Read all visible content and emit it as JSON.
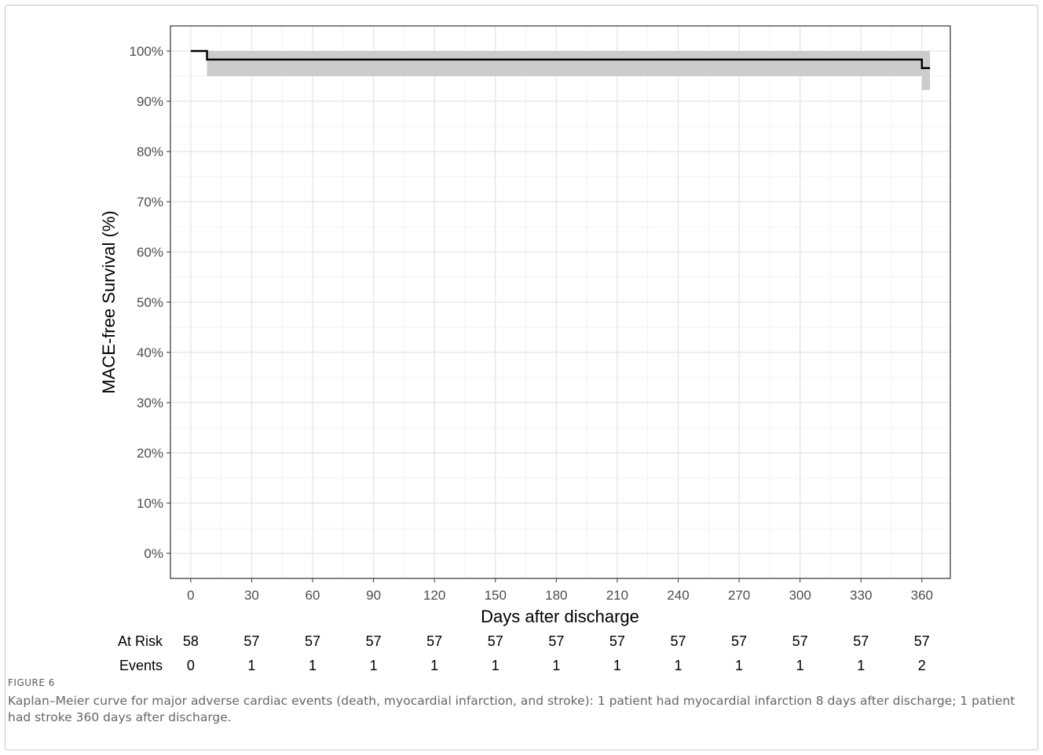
{
  "chart_data": {
    "type": "line",
    "subtype": "kaplan-meier-step",
    "xlabel": "Days after discharge",
    "ylabel": "MACE-free Survival (%)",
    "xlim": [
      -10,
      374
    ],
    "ylim": [
      -5,
      105
    ],
    "x_ticks": [
      0,
      30,
      60,
      90,
      120,
      150,
      180,
      210,
      240,
      270,
      300,
      330,
      360
    ],
    "y_ticks": [
      0,
      10,
      20,
      30,
      40,
      50,
      60,
      70,
      80,
      90,
      100
    ],
    "y_tick_labels": [
      "0%",
      "10%",
      "20%",
      "30%",
      "40%",
      "50%",
      "60%",
      "70%",
      "80%",
      "90%",
      "100%"
    ],
    "grid": true,
    "series": [
      {
        "x": [
          0,
          8,
          360,
          364
        ],
        "y": [
          100,
          98.3,
          96.6,
          96.6
        ]
      }
    ],
    "confidence_band": {
      "x": [
        8,
        360,
        364
      ],
      "lower": [
        95.0,
        92.2,
        92.2
      ],
      "upper": [
        100,
        100,
        100
      ]
    },
    "risk_table": {
      "at_risk_label": "At Risk",
      "events_label": "Events",
      "at_risk": [
        58,
        57,
        57,
        57,
        57,
        57,
        57,
        57,
        57,
        57,
        57,
        57,
        57
      ],
      "events": [
        0,
        1,
        1,
        1,
        1,
        1,
        1,
        1,
        1,
        1,
        1,
        1,
        2
      ]
    }
  },
  "caption": {
    "label": "FIGURE 6",
    "text": "Kaplan–Meier curve for major adverse cardiac events (death, myocardial infarction, and stroke): 1 patient had myocardial infarction 8 days after discharge; 1 patient had stroke 360 days after discharge."
  }
}
